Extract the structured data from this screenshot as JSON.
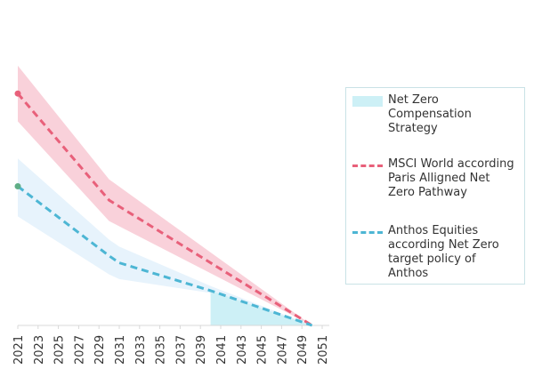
{
  "chart_data": {
    "type": "line",
    "title": "",
    "xlabel": "",
    "ylabel": "",
    "x_tick_labels": [
      "2021",
      "2023",
      "2025",
      "2027",
      "2029",
      "2031",
      "2033",
      "2035",
      "2037",
      "2039",
      "2041",
      "2043",
      "2045",
      "2047",
      "2049",
      "2051"
    ],
    "x_range": [
      2021,
      2051
    ],
    "y_axis_visible": false,
    "grid": false,
    "legend_position": "right",
    "series": [
      {
        "name": "MSCI World according Paris Alligned Net Zero Pathway",
        "style": "dashed",
        "color": "#e8607a",
        "band_color": "#f7c2ce",
        "x": [
          2021,
          2030,
          2050
        ],
        "y": [
          100,
          54,
          0
        ],
        "band_upper": [
          112,
          63,
          0
        ],
        "band_lower": [
          88,
          45,
          0
        ],
        "start_marker": true
      },
      {
        "name": "Anthos Equities according Net Zero target policy of Anthos",
        "style": "dashed",
        "color": "#4db6d4",
        "band_color": "#e3f1fb",
        "x": [
          2021,
          2030,
          2031,
          2040,
          2050
        ],
        "y": [
          60,
          30,
          27,
          15,
          0
        ],
        "band_upper": [
          72,
          37,
          34,
          17,
          0
        ],
        "band_lower": [
          47,
          22,
          20,
          14,
          0
        ],
        "start_marker": true,
        "start_marker_color": "#5fae86"
      },
      {
        "name": "Net Zero Compensation Strategy",
        "type": "area",
        "color": "#cdf0f6",
        "x": [
          2040,
          2050
        ],
        "y": [
          15,
          0
        ]
      }
    ],
    "legend": [
      "Net Zero Compensation Strategy",
      "MSCI World according Paris Alligned Net Zero Pathway",
      "Anthos Equities according Net Zero target policy of Anthos"
    ]
  }
}
